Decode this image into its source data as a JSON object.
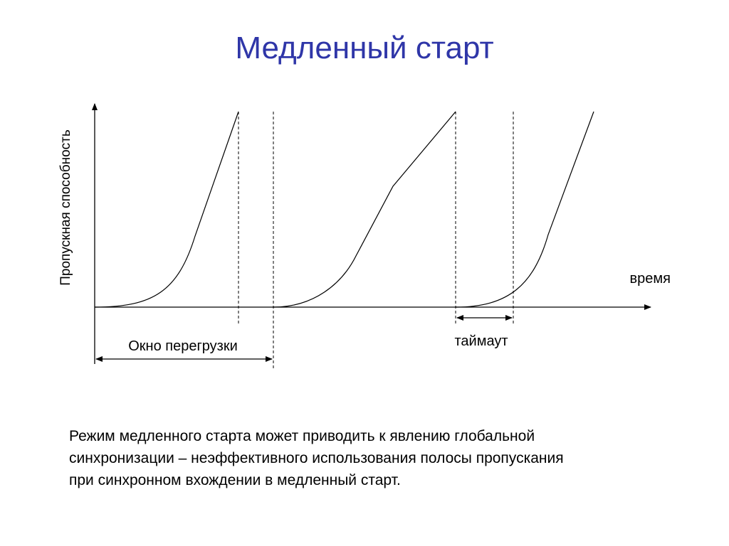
{
  "title": "Медленный старт",
  "colors": {
    "title": "#2f36a8",
    "lines": "#000000",
    "background": "#ffffff"
  },
  "diagram": {
    "y_axis_label": "Пропускная способность",
    "x_axis_label": "время",
    "window_label": "Окно перегрузки",
    "timeout_label": "таймаут"
  },
  "caption": {
    "lines": [
      "Режим медленного старта может приводить к явлению глобальной",
      "синхронизации – неэффективного использования полосы пропускания",
      "при синхронном вхождении в медленный старт."
    ]
  }
}
